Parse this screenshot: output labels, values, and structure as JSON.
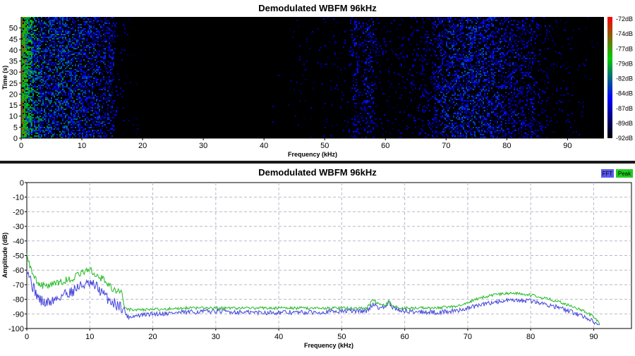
{
  "chart_data": [
    {
      "type": "heatmap",
      "title": "Demodulated WBFM 96kHz",
      "xlabel": "Frequency (kHz)",
      "ylabel": "Time (s)",
      "xlim": [
        0,
        96
      ],
      "ylim": [
        0,
        55
      ],
      "x_ticks": [
        0,
        10,
        20,
        30,
        40,
        50,
        60,
        70,
        80,
        90
      ],
      "y_ticks": [
        0,
        5,
        10,
        15,
        20,
        25,
        30,
        35,
        40,
        45,
        50
      ],
      "colorbar": {
        "labels": [
          "-72dB",
          "-74dB",
          "-77dB",
          "-79dB",
          "-82dB",
          "-84dB",
          "-87dB",
          "-89dB",
          "-92dB"
        ],
        "range_db": [
          -92,
          -72
        ],
        "colors": [
          "#000000",
          "#0000ff",
          "#00cc00",
          "#ff0000"
        ]
      },
      "intensity_profile": {
        "freq_khz": [
          0,
          1,
          2,
          4,
          8,
          12,
          15,
          16,
          20,
          40,
          54,
          55,
          56,
          57,
          58,
          59,
          62,
          66,
          69,
          72,
          76,
          80,
          84,
          88,
          96
        ],
        "level_db": [
          -78,
          -82,
          -84,
          -86,
          -86,
          -87,
          -88,
          -91,
          -92,
          -92,
          -91,
          -88,
          -90,
          -88,
          -89,
          -91,
          -91,
          -90,
          -88,
          -87,
          -87,
          -88,
          -89,
          -91,
          -92
        ]
      }
    },
    {
      "type": "line",
      "title": "Demodulated WBFM 96kHz",
      "xlabel": "Frequency (kHz)",
      "ylabel": "Amplitude (dB)",
      "xlim": [
        0,
        96
      ],
      "ylim": [
        -100,
        0
      ],
      "x_ticks": [
        0,
        10,
        20,
        30,
        40,
        50,
        60,
        70,
        80,
        90
      ],
      "y_ticks": [
        0,
        -10,
        -20,
        -30,
        -40,
        -50,
        -60,
        -70,
        -80,
        -90,
        -100
      ],
      "grid": true,
      "legend_position": "top-right",
      "legend": [
        {
          "label": "FFT",
          "color": "#5a5aee"
        },
        {
          "label": "Peak",
          "color": "#22cc22"
        }
      ],
      "series": [
        {
          "name": "FFT",
          "color": "#4545dd",
          "x": [
            0,
            0.5,
            1,
            2,
            3,
            4,
            5,
            6,
            7,
            8,
            9,
            10,
            11,
            12,
            13,
            14,
            15,
            15.5,
            16,
            18,
            20,
            25,
            30,
            35,
            40,
            45,
            50,
            54,
            55,
            56,
            57,
            57.5,
            58,
            60,
            65,
            68,
            70,
            72,
            74,
            76,
            78,
            80,
            82,
            84,
            86,
            88,
            90,
            91
          ],
          "y": [
            -57,
            -65,
            -72,
            -80,
            -83,
            -81,
            -79,
            -76,
            -75,
            -72,
            -70,
            -70,
            -71,
            -76,
            -80,
            -83,
            -85,
            -88,
            -92,
            -91,
            -90,
            -89,
            -88,
            -89,
            -89,
            -89,
            -88,
            -88,
            -83,
            -86,
            -85,
            -82,
            -86,
            -88,
            -89,
            -88,
            -86,
            -84,
            -82,
            -81,
            -81,
            -81,
            -83,
            -85,
            -88,
            -91,
            -95,
            -99
          ]
        },
        {
          "name": "Peak",
          "color": "#22bb22",
          "x": [
            0,
            0.5,
            1,
            2,
            3,
            4,
            5,
            6,
            7,
            8,
            9,
            10,
            11,
            12,
            13,
            14,
            15,
            15.5,
            16,
            18,
            20,
            25,
            30,
            35,
            40,
            45,
            50,
            54,
            55,
            56,
            57,
            57.5,
            58,
            60,
            65,
            68,
            70,
            72,
            74,
            76,
            78,
            80,
            82,
            84,
            86,
            88,
            90,
            91
          ],
          "y": [
            -50,
            -57,
            -63,
            -70,
            -71,
            -70,
            -69,
            -67,
            -66,
            -64,
            -61,
            -60,
            -63,
            -66,
            -70,
            -74,
            -75,
            -85,
            -87,
            -87,
            -87,
            -86,
            -86,
            -86,
            -86,
            -86,
            -86,
            -86,
            -80,
            -84,
            -84,
            -81,
            -85,
            -86,
            -86,
            -85,
            -82,
            -79,
            -77,
            -76,
            -76,
            -77,
            -79,
            -81,
            -84,
            -87,
            -92,
            -97
          ]
        }
      ]
    }
  ]
}
